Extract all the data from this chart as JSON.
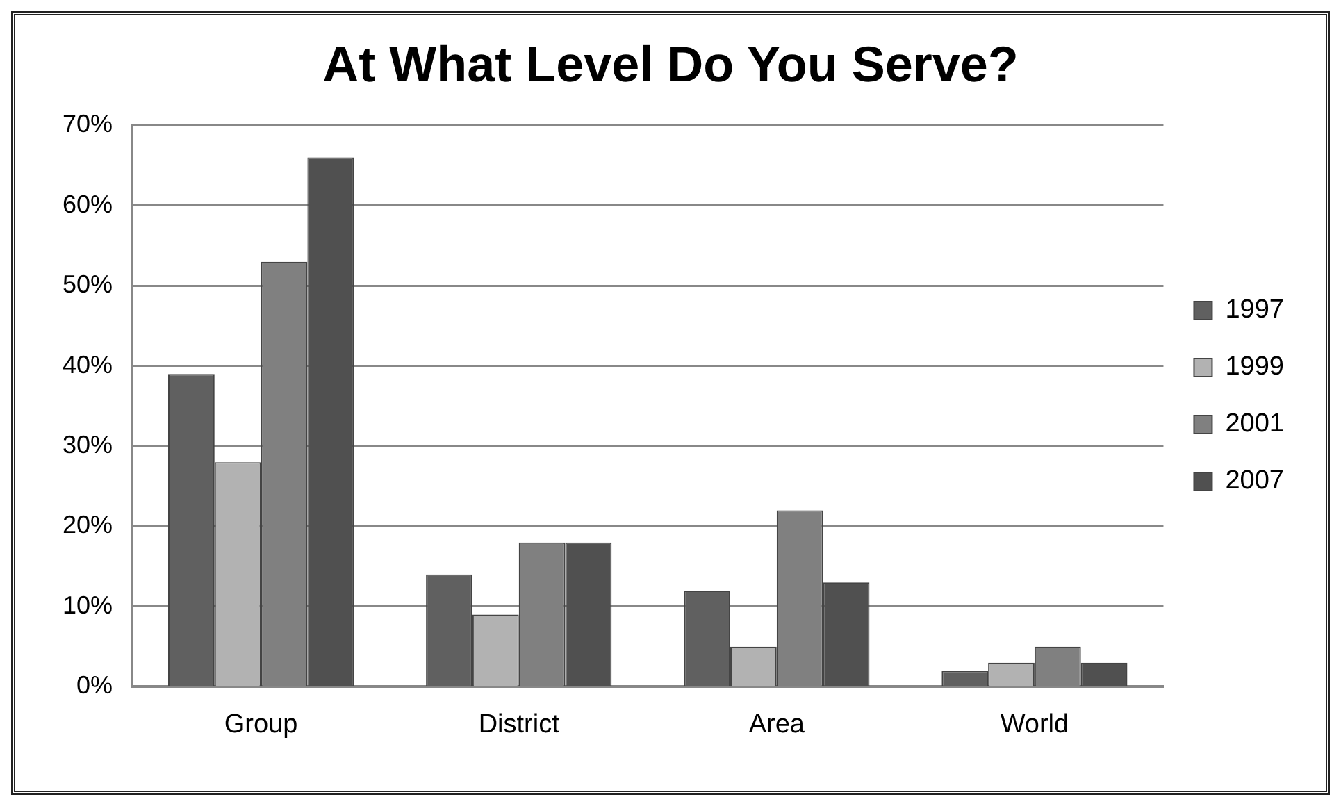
{
  "chart_data": {
    "type": "bar",
    "title": "At What Level Do You Serve?",
    "categories": [
      "Group",
      "District",
      "Area",
      "World"
    ],
    "series": [
      {
        "name": "1997",
        "color": "#606060",
        "values": [
          39,
          14,
          12,
          2
        ]
      },
      {
        "name": "1999",
        "color": "#b2b2b2",
        "values": [
          28,
          9,
          5,
          3
        ]
      },
      {
        "name": "2001",
        "color": "#808080",
        "values": [
          53,
          18,
          22,
          5
        ]
      },
      {
        "name": "2007",
        "color": "#505050",
        "values": [
          66,
          18,
          13,
          3
        ]
      }
    ],
    "ylim": [
      0,
      70
    ],
    "yticks": [
      {
        "value": 0,
        "label": "0%"
      },
      {
        "value": 10,
        "label": "10%"
      },
      {
        "value": 20,
        "label": "20%"
      },
      {
        "value": 30,
        "label": "30%"
      },
      {
        "value": 40,
        "label": "40%"
      },
      {
        "value": 50,
        "label": "50%"
      },
      {
        "value": 60,
        "label": "60%"
      },
      {
        "value": 70,
        "label": "70%"
      }
    ],
    "grid": "y",
    "legend": "right"
  }
}
